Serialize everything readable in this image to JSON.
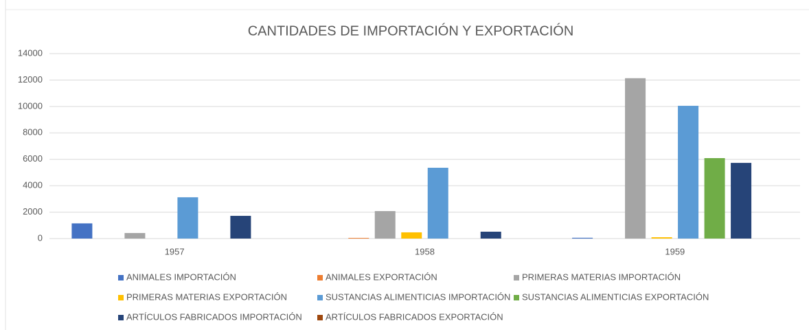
{
  "chart_data": {
    "type": "bar",
    "title": "CANTIDADES DE IMPORTACIÓN Y EXPORTACIÓN",
    "categories": [
      "1957",
      "1958",
      "1959"
    ],
    "series": [
      {
        "name": "ANIMALES IMPORTACIÓN",
        "color": "#4472c4",
        "values": [
          1150,
          0,
          60
        ]
      },
      {
        "name": "ANIMALES EXPORTACIÓN",
        "color": "#ed7d31",
        "values": [
          0,
          50,
          0
        ]
      },
      {
        "name": "PRIMERAS MATERIAS  IMPORTACIÓN",
        "color": "#a5a5a5",
        "values": [
          420,
          2080,
          12140
        ]
      },
      {
        "name": "PRIMERAS MATERIAS EXPORTACIÓN",
        "color": "#ffc000",
        "values": [
          0,
          470,
          100
        ]
      },
      {
        "name": "SUSTANCIAS ALIMENTICIAS IMPORTACIÓN",
        "color": "#5b9bd5",
        "values": [
          3125,
          5360,
          10050
        ]
      },
      {
        "name": "SUSTANCIAS ALIMENTICIAS EXPORTACIÓN",
        "color": "#70ad47",
        "values": [
          0,
          0,
          6090
        ]
      },
      {
        "name": "ARTÍCULOS FABRICADOS IMPORTACIÓN",
        "color": "#264478",
        "values": [
          1720,
          520,
          5730
        ]
      },
      {
        "name": "ARTÍCULOS FABRICADOS EXPORTACIÓN",
        "color": "#9e480e",
        "values": [
          0,
          0,
          0
        ]
      }
    ],
    "ylim": [
      0,
      14000
    ],
    "yticks": [
      0,
      2000,
      4000,
      6000,
      8000,
      10000,
      12000,
      14000
    ],
    "grid": true,
    "legend": "bottom"
  }
}
